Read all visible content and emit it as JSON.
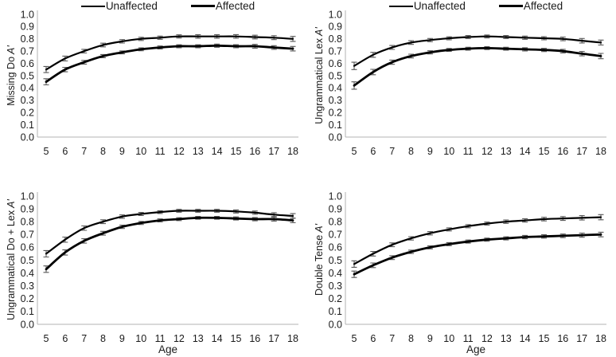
{
  "figure": {
    "background": "#ffffff",
    "text_color": "#1a1a1a",
    "line_color": "#000000",
    "axis_color": "#b3b3b3",
    "error_bar_color": "#595959"
  },
  "legend": {
    "items": [
      {
        "label": "Unaffected",
        "weight": "thin"
      },
      {
        "label": "Affected",
        "weight": "thick"
      }
    ]
  },
  "chart_data": [
    {
      "type": "line",
      "panel": "top-left",
      "ylabel": "Missing Do A'",
      "ylabel_text": "Missing Do",
      "ylabel_symbol": "A'",
      "xlabel": "",
      "ylim": [
        0.0,
        1.0
      ],
      "ytick_step": 0.1,
      "legend_position": "top",
      "x": [
        5,
        6,
        7,
        8,
        9,
        10,
        11,
        12,
        13,
        14,
        15,
        16,
        17,
        18
      ],
      "series": [
        {
          "name": "Unaffected",
          "values": [
            0.55,
            0.64,
            0.7,
            0.75,
            0.78,
            0.8,
            0.81,
            0.82,
            0.82,
            0.82,
            0.82,
            0.815,
            0.81,
            0.8
          ],
          "errors": [
            0.025,
            0.02,
            0.015,
            0.015,
            0.014,
            0.013,
            0.013,
            0.013,
            0.014,
            0.014,
            0.015,
            0.015,
            0.016,
            0.02
          ]
        },
        {
          "name": "Affected",
          "values": [
            0.45,
            0.55,
            0.61,
            0.66,
            0.69,
            0.715,
            0.73,
            0.74,
            0.74,
            0.745,
            0.74,
            0.74,
            0.73,
            0.72
          ],
          "errors": [
            0.025,
            0.018,
            0.015,
            0.013,
            0.012,
            0.012,
            0.012,
            0.012,
            0.012,
            0.013,
            0.013,
            0.015,
            0.015,
            0.018
          ]
        }
      ]
    },
    {
      "type": "line",
      "panel": "top-right",
      "ylabel": "Ungrammatical Lex A'",
      "ylabel_text": "Ungrammatical Lex",
      "ylabel_symbol": "A'",
      "xlabel": "",
      "ylim": [
        0.0,
        1.0
      ],
      "ytick_step": 0.1,
      "legend_position": "top",
      "x": [
        5,
        6,
        7,
        8,
        9,
        10,
        11,
        12,
        13,
        14,
        15,
        16,
        17,
        18
      ],
      "series": [
        {
          "name": "Unaffected",
          "values": [
            0.58,
            0.67,
            0.73,
            0.77,
            0.79,
            0.805,
            0.815,
            0.82,
            0.815,
            0.81,
            0.805,
            0.8,
            0.785,
            0.77
          ],
          "errors": [
            0.03,
            0.02,
            0.016,
            0.015,
            0.013,
            0.012,
            0.012,
            0.012,
            0.012,
            0.013,
            0.013,
            0.015,
            0.018,
            0.02
          ]
        },
        {
          "name": "Affected",
          "values": [
            0.42,
            0.53,
            0.61,
            0.66,
            0.69,
            0.71,
            0.72,
            0.725,
            0.72,
            0.715,
            0.71,
            0.7,
            0.68,
            0.66
          ],
          "errors": [
            0.03,
            0.022,
            0.017,
            0.015,
            0.013,
            0.012,
            0.012,
            0.012,
            0.012,
            0.013,
            0.013,
            0.015,
            0.018,
            0.022
          ]
        }
      ]
    },
    {
      "type": "line",
      "panel": "bottom-left",
      "ylabel": "Ungrammatical Do + Lex A'",
      "ylabel_text": "Ungrammatical Do + Lex",
      "ylabel_symbol": "A'",
      "xlabel": "Age",
      "ylim": [
        0.0,
        1.0
      ],
      "ytick_step": 0.1,
      "legend_position": "none",
      "x": [
        5,
        6,
        7,
        8,
        9,
        10,
        11,
        12,
        13,
        14,
        15,
        16,
        17,
        18
      ],
      "series": [
        {
          "name": "Unaffected",
          "values": [
            0.55,
            0.66,
            0.75,
            0.8,
            0.84,
            0.86,
            0.875,
            0.885,
            0.885,
            0.885,
            0.88,
            0.87,
            0.855,
            0.845
          ],
          "errors": [
            0.025,
            0.02,
            0.017,
            0.015,
            0.013,
            0.012,
            0.011,
            0.011,
            0.011,
            0.011,
            0.012,
            0.013,
            0.015,
            0.018
          ]
        },
        {
          "name": "Affected",
          "values": [
            0.43,
            0.56,
            0.65,
            0.71,
            0.76,
            0.79,
            0.81,
            0.82,
            0.83,
            0.83,
            0.825,
            0.82,
            0.82,
            0.81
          ],
          "errors": [
            0.025,
            0.02,
            0.017,
            0.015,
            0.013,
            0.012,
            0.012,
            0.011,
            0.011,
            0.011,
            0.012,
            0.013,
            0.015,
            0.018
          ]
        }
      ]
    },
    {
      "type": "line",
      "panel": "bottom-right",
      "ylabel": "Double Tense A'",
      "ylabel_text": "Double Tense",
      "ylabel_symbol": "A'",
      "xlabel": "Age",
      "ylim": [
        0.0,
        1.0
      ],
      "ytick_step": 0.1,
      "legend_position": "none",
      "x": [
        5,
        6,
        7,
        8,
        9,
        10,
        11,
        12,
        13,
        14,
        15,
        16,
        17,
        18
      ],
      "series": [
        {
          "name": "Unaffected",
          "values": [
            0.47,
            0.55,
            0.62,
            0.67,
            0.71,
            0.74,
            0.765,
            0.785,
            0.8,
            0.81,
            0.82,
            0.825,
            0.83,
            0.835
          ],
          "errors": [
            0.025,
            0.018,
            0.015,
            0.013,
            0.013,
            0.012,
            0.012,
            0.012,
            0.013,
            0.013,
            0.014,
            0.015,
            0.017,
            0.02
          ]
        },
        {
          "name": "Affected",
          "values": [
            0.39,
            0.46,
            0.52,
            0.565,
            0.6,
            0.625,
            0.645,
            0.66,
            0.67,
            0.68,
            0.685,
            0.69,
            0.695,
            0.7
          ],
          "errors": [
            0.025,
            0.018,
            0.015,
            0.013,
            0.012,
            0.012,
            0.012,
            0.012,
            0.012,
            0.013,
            0.013,
            0.014,
            0.016,
            0.018
          ]
        }
      ]
    }
  ]
}
